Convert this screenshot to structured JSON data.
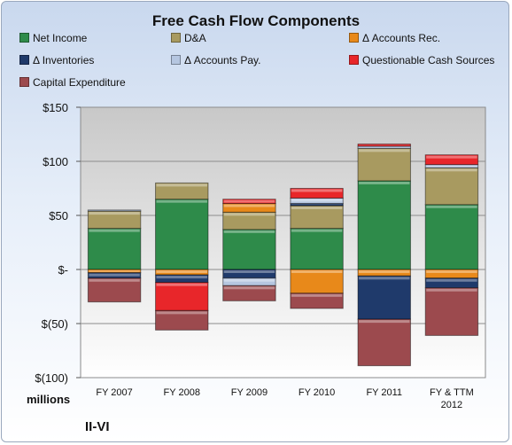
{
  "chart_data": {
    "type": "bar",
    "stacked": true,
    "title": "Free Cash Flow Components",
    "categories": [
      "FY 2007",
      "FY 2008",
      "FY 2009",
      "FY 2010",
      "FY 2011",
      "FY & TTM 2012"
    ],
    "series": [
      {
        "name": "Net Income",
        "color": "#2e8b4a",
        "values": [
          38,
          65,
          37,
          38,
          82,
          60
        ]
      },
      {
        "name": "D&A",
        "color": "#a89a60",
        "values": [
          16,
          15,
          16,
          21,
          30,
          34
        ]
      },
      {
        "name": "Δ Accounts Rec.",
        "color": "#e8891a",
        "values": [
          -3,
          -5,
          8,
          -22,
          -6,
          -8
        ]
      },
      {
        "name": "Δ Inventories",
        "color": "#1f3a6b",
        "values": [
          -5,
          -7,
          -8,
          2,
          -40,
          -9
        ]
      },
      {
        "name": "Δ Accounts Pay.",
        "color": "#b5c6e0",
        "values": [
          1,
          0,
          -7,
          5,
          2,
          3
        ]
      },
      {
        "name": "Questionable Cash Sources",
        "color": "#e8262a",
        "values": [
          0,
          -26,
          4,
          9,
          2,
          9
        ]
      },
      {
        "name": "Capital Expenditure",
        "color": "#9c4a4e",
        "values": [
          -22,
          -18,
          -14,
          -14,
          -43,
          -44
        ]
      }
    ],
    "ylim": [
      -100,
      150
    ],
    "yticks": [
      {
        "value": 150,
        "label": "$150"
      },
      {
        "value": 100,
        "label": "$100"
      },
      {
        "value": 50,
        "label": "$50"
      },
      {
        "value": 0,
        "label": "$-"
      },
      {
        "value": -50,
        "label": "$(50)"
      },
      {
        "value": -100,
        "label": "$(100)"
      }
    ],
    "grid": true,
    "legend_position": "top",
    "unit_label": "millions",
    "company": "II-VI"
  }
}
